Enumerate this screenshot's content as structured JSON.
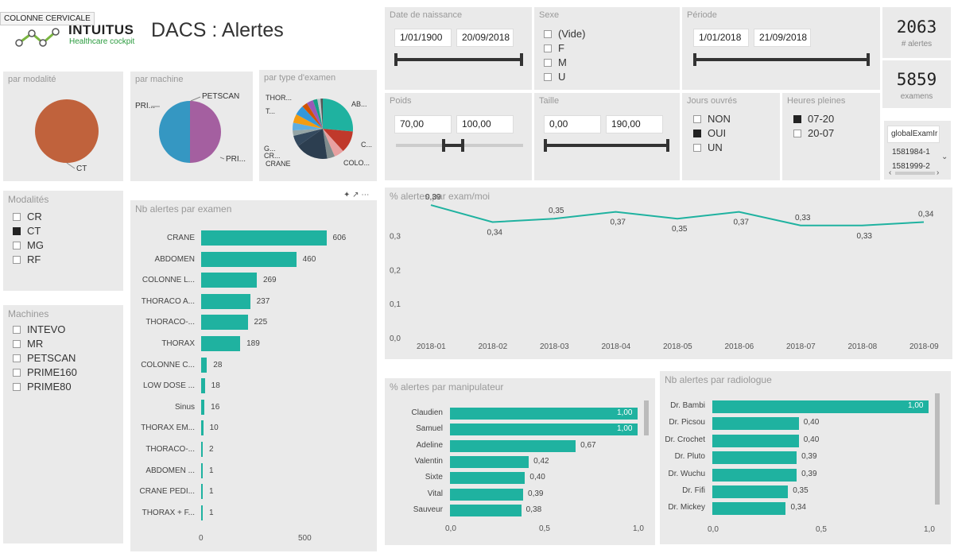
{
  "tooltip": "COLONNE CERVICALE",
  "logo": {
    "name": "INTUITUS",
    "sub": "Healthcare cockpit"
  },
  "title": "DACS : Alertes",
  "filters": {
    "dob": {
      "title": "Date de naissance",
      "from": "1/01/1900",
      "to": "20/09/2018"
    },
    "sexe": {
      "title": "Sexe",
      "options": [
        "(Vide)",
        "F",
        "M",
        "U"
      ]
    },
    "periode": {
      "title": "Période",
      "from": "1/01/2018",
      "to": "21/09/2018"
    },
    "poids": {
      "title": "Poids",
      "from": "70,00",
      "to": "100,00"
    },
    "taille": {
      "title": "Taille",
      "from": "0,00",
      "to": "190,00"
    },
    "jours": {
      "title": "Jours ouvrés",
      "options": [
        {
          "label": "NON",
          "checked": false
        },
        {
          "label": "OUI",
          "checked": true
        },
        {
          "label": "UN",
          "checked": false
        }
      ]
    },
    "heures": {
      "title": "Heures pleines",
      "options": [
        {
          "label": "07-20",
          "checked": true
        },
        {
          "label": "20-07",
          "checked": false
        }
      ]
    }
  },
  "kpis": [
    {
      "value": "2063",
      "label": "# alertes"
    },
    {
      "value": "5859",
      "label": "examens"
    }
  ],
  "exam_list": {
    "header": "globalExamIr",
    "rows": [
      "1581984-1",
      "1581999-2"
    ]
  },
  "modalites": {
    "title": "Modalités",
    "items": [
      {
        "label": "CR",
        "checked": false
      },
      {
        "label": "CT",
        "checked": true
      },
      {
        "label": "MG",
        "checked": false
      },
      {
        "label": "RF",
        "checked": false
      }
    ]
  },
  "machines": {
    "title": "Machines",
    "items": [
      "INTEVO",
      "MR",
      "PETSCAN",
      "PRIME160",
      "PRIME80"
    ]
  },
  "pie_titles": {
    "modalite": "par modalité",
    "machine": "par machine",
    "type": "par type d'examen"
  },
  "pie_labels": {
    "modalite": [
      "CT"
    ],
    "machine": [
      "PETSCAN",
      "PRI...",
      "PRI..."
    ],
    "type": [
      "THOR...",
      "T...",
      "AB...",
      "C...",
      "G...",
      "CR...",
      "CRANE",
      "COLO..."
    ]
  },
  "colors": {
    "accent": "#1fb2a0",
    "pie_ct": "#c0623c",
    "pie_blue": "#3597c2",
    "pie_purple": "#a45fa0"
  },
  "visual_icons": [
    "pin-icon",
    "expand-icon",
    "more-icon"
  ],
  "chart_data": [
    {
      "type": "bar",
      "title": "Nb alertes par examen",
      "categories": [
        "CRANE",
        "ABDOMEN",
        "COLONNE L...",
        "THORACO A...",
        "THORACO-...",
        "THORAX",
        "COLONNE C...",
        "LOW DOSE ...",
        "Sinus",
        "THORAX EM...",
        "THORACO-...",
        "ABDOMEN ...",
        "CRANE PEDI...",
        "THORAX + F..."
      ],
      "values": [
        606,
        460,
        269,
        237,
        225,
        189,
        28,
        18,
        16,
        10,
        2,
        1,
        1,
        1
      ],
      "xticks": [
        "0",
        "500"
      ],
      "xlim": [
        0,
        680
      ]
    },
    {
      "type": "line",
      "title": "% alertes par exam/moi",
      "x": [
        "2018-01",
        "2018-02",
        "2018-03",
        "2018-04",
        "2018-05",
        "2018-06",
        "2018-07",
        "2018-08",
        "2018-09"
      ],
      "values": [
        0.39,
        0.34,
        0.35,
        0.37,
        0.35,
        0.37,
        0.33,
        0.33,
        0.34
      ],
      "labels": [
        "0,39",
        "0,34",
        "0,35",
        "0,37",
        "0,35",
        "0,37",
        "0,33",
        "0,33",
        "0,34"
      ],
      "yticks": [
        "0,0",
        "0,1",
        "0,2",
        "0,3"
      ],
      "ylim": [
        0,
        0.42
      ]
    },
    {
      "type": "bar",
      "title": "% alertes par manipulateur",
      "categories": [
        "Claudien",
        "Samuel",
        "Adeline",
        "Valentin",
        "Sixte",
        "Vital",
        "Sauveur"
      ],
      "values": [
        1.0,
        1.0,
        0.67,
        0.42,
        0.4,
        0.39,
        0.38
      ],
      "labels": [
        "1,00",
        "1,00",
        "0,67",
        "0,42",
        "0,40",
        "0,39",
        "0,38"
      ],
      "xticks": [
        "0,0",
        "0,5",
        "1,0"
      ],
      "xlim": [
        0,
        1
      ]
    },
    {
      "type": "bar",
      "title": "Nb alertes par radiologue",
      "categories": [
        "Dr. Bambi",
        "Dr. Picsou",
        "Dr. Crochet",
        "Dr. Pluto",
        "Dr. Wuchu",
        "Dr. Fifi",
        "Dr. Mickey"
      ],
      "values": [
        1.0,
        0.4,
        0.4,
        0.39,
        0.39,
        0.35,
        0.34
      ],
      "labels": [
        "1,00",
        "0,40",
        "0,40",
        "0,39",
        "0,39",
        "0,35",
        "0,34"
      ],
      "xticks": [
        "0,0",
        "0,5",
        "1,0"
      ],
      "xlim": [
        0,
        1
      ]
    }
  ]
}
